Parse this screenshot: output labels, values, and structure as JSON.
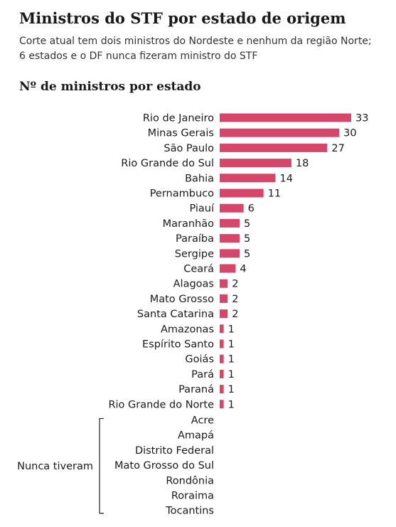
{
  "title": "Ministros do STF por estado de origem",
  "subtitle": "Corte atual tem dois ministros do Nordeste e nenhum da região Norte; 6 estados e o DF nunca fizeram ministro do STF",
  "chart_data": {
    "type": "bar",
    "orientation": "horizontal",
    "title": "Nº de ministros por estado",
    "categories": [
      "Rio de Janeiro",
      "Minas Gerais",
      "São Paulo",
      "Rio Grande do Sul",
      "Bahia",
      "Pernambuco",
      "Piauí",
      "Maranhão",
      "Paraíba",
      "Sergipe",
      "Ceará",
      "Alagoas",
      "Mato Grosso",
      "Santa Catarina",
      "Amazonas",
      "Espírito Santo",
      "Goiás",
      "Pará",
      "Paraná",
      "Rio Grande do Norte"
    ],
    "values": [
      33,
      30,
      27,
      18,
      14,
      11,
      6,
      5,
      5,
      5,
      4,
      2,
      2,
      2,
      1,
      1,
      1,
      1,
      1,
      1
    ],
    "xlim": [
      0,
      33
    ],
    "grid": false,
    "bar_color": "#d6456a",
    "never_group": {
      "label": "Nunca tiveram",
      "items": [
        "Acre",
        "Amapá",
        "Distrito Federal",
        "Mato Grosso do Sul",
        "Rondônia",
        "Roraima",
        "Tocantins"
      ]
    }
  }
}
